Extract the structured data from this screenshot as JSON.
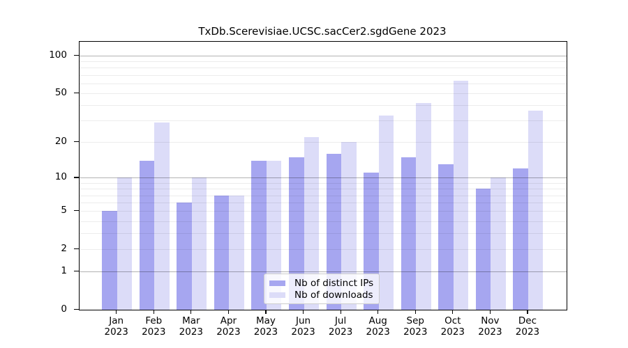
{
  "figure": {
    "background": "#ffffff"
  },
  "chart_data": {
    "type": "bar",
    "title": "TxDb.Scerevisiae.UCSC.sacCer2.sgdGene 2023",
    "categories": [
      "Jan",
      "Feb",
      "Mar",
      "Apr",
      "May",
      "Jun",
      "Jul",
      "Aug",
      "Sep",
      "Oct",
      "Nov",
      "Dec"
    ],
    "year_label": "2023",
    "series": [
      {
        "name": "Nb of distinct IPs",
        "color": "#a6a6f0",
        "values": [
          5,
          14,
          6,
          7,
          14,
          15,
          16,
          11,
          15,
          13,
          8,
          12
        ]
      },
      {
        "name": "Nb of downloads",
        "color": "#dcdcf8",
        "values": [
          10,
          29,
          10,
          7,
          14,
          22,
          20,
          33,
          42,
          63,
          10,
          36
        ]
      }
    ],
    "yscale": "log1p",
    "ylim": [
      0,
      129
    ],
    "y_ticks": [
      0,
      1,
      2,
      5,
      10,
      20,
      50,
      100
    ],
    "major_gridlines": [
      1,
      10,
      100
    ],
    "minor_gridlines": [
      2,
      3,
      4,
      5,
      6,
      7,
      8,
      9,
      20,
      30,
      40,
      50,
      60,
      70,
      80,
      90
    ],
    "grid": true,
    "axis_color": "#000000",
    "major_grid_color": "rgba(0,0,0,0.30)",
    "minor_grid_color": "rgba(0,0,0,0.075)",
    "legend": {
      "position": "bottom-center",
      "entries": [
        "Nb of distinct IPs",
        "Nb of downloads"
      ]
    }
  }
}
